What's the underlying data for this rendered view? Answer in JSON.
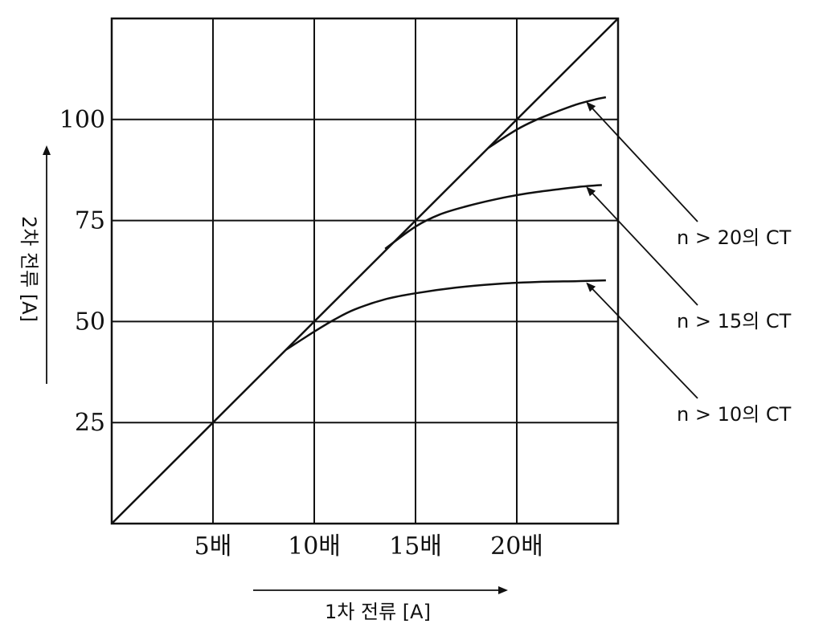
{
  "chart_data": {
    "type": "line",
    "title": "",
    "xlabel": "1차 전류 [A]",
    "ylabel": "2차 전류 [A]",
    "xlim": [
      0,
      25
    ],
    "ylim": [
      0,
      125
    ],
    "x_tick_values": [
      5,
      10,
      15,
      20
    ],
    "x_tick_labels": [
      "5배",
      "10배",
      "15배",
      "20배"
    ],
    "y_tick_values": [
      25,
      50,
      75,
      100
    ],
    "y_tick_labels": [
      "25",
      "50",
      "75",
      "100"
    ],
    "grid": true,
    "series": [
      {
        "name": "",
        "x": [
          0,
          25
        ],
        "y": [
          0,
          125
        ]
      },
      {
        "name": "",
        "x": [
          8.6,
          10,
          11,
          12,
          13.5,
          15,
          17,
          19,
          21,
          23,
          24.4
        ],
        "y": [
          43,
          47.5,
          50.5,
          53,
          55.5,
          57,
          58.4,
          59.3,
          59.8,
          60,
          60.2
        ]
      },
      {
        "name": "",
        "x": [
          13.5,
          15,
          16.2,
          17.5,
          19,
          20.5,
          22,
          23,
          24.2
        ],
        "y": [
          68,
          73.5,
          76.5,
          78.5,
          80.3,
          81.7,
          82.7,
          83.3,
          83.8
        ]
      },
      {
        "name": "",
        "x": [
          18.6,
          20,
          21,
          22,
          23,
          23.9,
          24.4
        ],
        "y": [
          93,
          97.5,
          100,
          102,
          103.8,
          105,
          105.5
        ]
      }
    ],
    "annotations": [
      {
        "text": "n > 20의 CT",
        "points_to": [
          23.4,
          104.5
        ]
      },
      {
        "text": "n > 15의 CT",
        "points_to": [
          23.4,
          83.5
        ]
      },
      {
        "text": "n > 10의 CT",
        "points_to": [
          23.4,
          59.8
        ]
      }
    ]
  }
}
